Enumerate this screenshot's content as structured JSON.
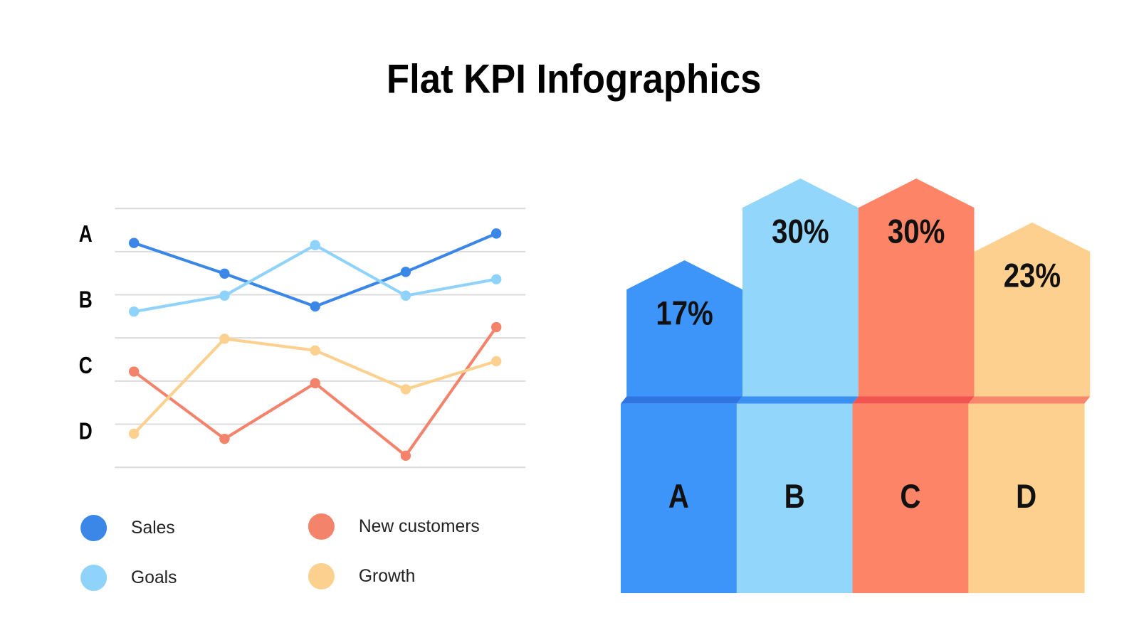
{
  "title": "Flat KPI Infographics",
  "chart_data": [
    {
      "type": "line",
      "categories": [
        null,
        null,
        null,
        null,
        null
      ],
      "row_labels": [
        "A",
        "B",
        "C",
        "D"
      ],
      "ylim": [
        0,
        6
      ],
      "yticks": [
        0,
        1,
        2,
        3,
        4,
        5,
        6
      ],
      "grid": true,
      "tick_labels": false,
      "series": [
        {
          "name": "Sales",
          "color": "#3a87e8",
          "values": [
            5.2,
            4.49,
            3.73,
            4.53,
            5.42
          ]
        },
        {
          "name": "Goals",
          "color": "#8fd3fb",
          "values": [
            3.61,
            3.98,
            5.15,
            3.98,
            4.36
          ]
        },
        {
          "name": "New customers",
          "color": "#f3836a",
          "values": [
            2.22,
            0.66,
            1.95,
            0.27,
            3.25
          ]
        },
        {
          "name": "Growth",
          "color": "#fcd08f",
          "values": [
            0.78,
            2.98,
            2.71,
            1.81,
            2.46
          ]
        }
      ]
    },
    {
      "type": "bar",
      "categories": [
        "A",
        "B",
        "C",
        "D"
      ],
      "values": [
        17,
        30,
        30,
        23
      ],
      "value_labels": [
        "17%",
        "30%",
        "30%",
        "23%"
      ],
      "colors": [
        "#3d94f9",
        "#93d6fb",
        "#fd8467",
        "#fdd08f"
      ],
      "band_colors": [
        "#2f74e0",
        "#3b8ff0",
        "#f25550",
        "#f7866b"
      ]
    }
  ]
}
